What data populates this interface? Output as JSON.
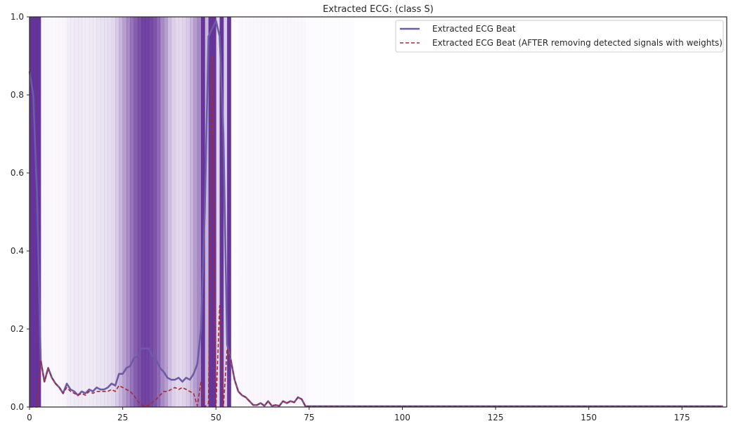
{
  "chart_data": {
    "type": "line",
    "title": "Extracted ECG: (class S)",
    "xlabel": "",
    "ylabel": "",
    "xlim": [
      0,
      187
    ],
    "ylim": [
      0,
      1
    ],
    "xticks": [
      0,
      25,
      50,
      75,
      100,
      125,
      150,
      175
    ],
    "yticks": [
      0.0,
      0.2,
      0.4,
      0.6,
      0.8,
      1.0
    ],
    "grid": false,
    "legend_position": "top-right",
    "colors": {
      "beat": "#6e5ba8",
      "after": "#a52a35",
      "band": "#5e2a94"
    },
    "series": [
      {
        "name": "Extracted ECG Beat",
        "style": "solid",
        "x": [
          0,
          1,
          2,
          3,
          4,
          5,
          6,
          7,
          8,
          9,
          10,
          11,
          12,
          13,
          14,
          15,
          16,
          17,
          18,
          19,
          20,
          21,
          22,
          23,
          24,
          25,
          26,
          27,
          28,
          29,
          30,
          31,
          32,
          33,
          34,
          35,
          36,
          37,
          38,
          39,
          40,
          41,
          42,
          43,
          44,
          45,
          46,
          47,
          48,
          49,
          50,
          51,
          52,
          53,
          54,
          55,
          56,
          57,
          58,
          59,
          60,
          61,
          62,
          63,
          64,
          65,
          66,
          67,
          68,
          69,
          70,
          71,
          72,
          73,
          74,
          75,
          80,
          100,
          125,
          150,
          175,
          186
        ],
        "y": [
          0.86,
          0.8,
          0.55,
          0.12,
          0.065,
          0.1,
          0.075,
          0.06,
          0.05,
          0.035,
          0.06,
          0.045,
          0.04,
          0.03,
          0.04,
          0.035,
          0.045,
          0.04,
          0.05,
          0.045,
          0.045,
          0.05,
          0.06,
          0.055,
          0.085,
          0.085,
          0.1,
          0.105,
          0.125,
          0.13,
          0.15,
          0.15,
          0.15,
          0.13,
          0.12,
          0.1,
          0.09,
          0.075,
          0.07,
          0.07,
          0.075,
          0.065,
          0.075,
          0.07,
          0.085,
          0.11,
          0.2,
          0.5,
          0.95,
          0.97,
          0.99,
          0.95,
          0.7,
          0.16,
          0.12,
          0.07,
          0.04,
          0.03,
          0.025,
          0.015,
          0.005,
          0.005,
          0.01,
          0.003,
          0.015,
          0.003,
          0.005,
          0.003,
          0.015,
          0.01,
          0.015,
          0.012,
          0.025,
          0.02,
          0.002,
          0.002,
          0.002,
          0.002,
          0.002,
          0.002,
          0.002,
          0.002
        ]
      },
      {
        "name": "Extracted ECG Beat (AFTER removing detected signals with weights)",
        "style": "dashed",
        "x": [
          0,
          1,
          2,
          3,
          4,
          5,
          6,
          7,
          8,
          9,
          10,
          11,
          12,
          13,
          14,
          15,
          16,
          17,
          18,
          19,
          20,
          21,
          22,
          23,
          24,
          25,
          26,
          27,
          28,
          29,
          30,
          31,
          32,
          33,
          34,
          35,
          36,
          37,
          38,
          39,
          40,
          41,
          42,
          43,
          44,
          45,
          46,
          47,
          48,
          49,
          50,
          51,
          52,
          53,
          54,
          55,
          56,
          57,
          58,
          59,
          60,
          61,
          62,
          63,
          64,
          65,
          66,
          67,
          68,
          69,
          70,
          71,
          72,
          73,
          74,
          75,
          80,
          100,
          125,
          150,
          175,
          186
        ],
        "y": [
          0.0,
          0.0,
          0.0,
          0.12,
          0.065,
          0.1,
          0.075,
          0.06,
          0.05,
          0.035,
          0.05,
          0.04,
          0.035,
          0.03,
          0.035,
          0.03,
          0.04,
          0.035,
          0.04,
          0.04,
          0.04,
          0.04,
          0.045,
          0.04,
          0.055,
          0.05,
          0.045,
          0.04,
          0.03,
          0.015,
          0.005,
          0.002,
          0.005,
          0.012,
          0.02,
          0.03,
          0.04,
          0.04,
          0.045,
          0.05,
          0.045,
          0.05,
          0.045,
          0.04,
          0.035,
          0.003,
          0.065,
          0.0,
          0.01,
          0.9,
          0.0,
          0.26,
          0.0,
          0.15,
          0.12,
          0.07,
          0.04,
          0.03,
          0.025,
          0.015,
          0.005,
          0.005,
          0.01,
          0.003,
          0.015,
          0.003,
          0.005,
          0.003,
          0.015,
          0.01,
          0.015,
          0.012,
          0.025,
          0.02,
          0.002,
          0.002,
          0.002,
          0.002,
          0.002,
          0.002,
          0.002,
          0.002
        ]
      }
    ],
    "weight_bands": {
      "x_start": 0,
      "x_step": 1,
      "weights": [
        0.95,
        0.95,
        0.95,
        0.04,
        0.03,
        0.03,
        0.03,
        0.03,
        0.04,
        0.05,
        0.08,
        0.09,
        0.1,
        0.1,
        0.09,
        0.09,
        0.1,
        0.11,
        0.12,
        0.13,
        0.14,
        0.15,
        0.18,
        0.25,
        0.35,
        0.45,
        0.55,
        0.65,
        0.75,
        0.82,
        0.88,
        0.88,
        0.85,
        0.8,
        0.7,
        0.55,
        0.45,
        0.3,
        0.22,
        0.18,
        0.18,
        0.2,
        0.25,
        0.35,
        0.45,
        0.55,
        0.95,
        0.35,
        0.95,
        0.95,
        0.2,
        0.95,
        0.25,
        0.95,
        0.02,
        0.02,
        0.03,
        0.03,
        0.04,
        0.04,
        0.04,
        0.04,
        0.04,
        0.04,
        0.04,
        0.04,
        0.04,
        0.04,
        0.04,
        0.04,
        0.04,
        0.04,
        0.04,
        0.04,
        0.02,
        0.02,
        0.02,
        0.02,
        0.02,
        0.02,
        0.02,
        0.02,
        0.02,
        0.02,
        0.02,
        0.02,
        0.02
      ]
    }
  }
}
